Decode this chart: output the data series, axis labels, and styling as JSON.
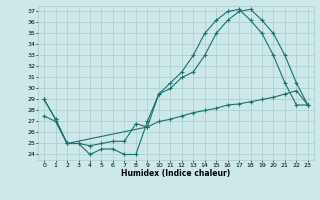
{
  "title": "",
  "xlabel": "Humidex (Indice chaleur)",
  "ylabel": "",
  "bg_color": "#cce8e8",
  "line_color": "#1a7070",
  "grid_color": "#aacccc",
  "xlim": [
    -0.5,
    23.5
  ],
  "ylim": [
    23.5,
    37.5
  ],
  "yticks": [
    24,
    25,
    26,
    27,
    28,
    29,
    30,
    31,
    32,
    33,
    34,
    35,
    36,
    37
  ],
  "xticks": [
    0,
    1,
    2,
    3,
    4,
    5,
    6,
    7,
    8,
    9,
    10,
    11,
    12,
    13,
    14,
    15,
    16,
    17,
    18,
    19,
    20,
    21,
    22,
    23
  ],
  "line1_x": [
    0,
    1,
    2,
    3,
    4,
    5,
    6,
    7,
    8,
    9,
    10,
    11,
    12,
    13,
    14,
    15,
    16,
    17,
    18,
    19,
    20,
    21,
    22,
    23
  ],
  "line1_y": [
    29.0,
    27.2,
    25.0,
    25.0,
    24.0,
    24.5,
    24.5,
    24.0,
    24.0,
    27.0,
    29.5,
    30.0,
    31.0,
    31.5,
    33.0,
    35.0,
    36.2,
    37.0,
    37.2,
    36.2,
    35.0,
    33.0,
    30.5,
    28.5
  ],
  "line2_x": [
    0,
    1,
    2,
    9,
    10,
    11,
    12,
    13,
    14,
    15,
    16,
    17,
    18,
    19,
    20,
    21,
    22,
    23
  ],
  "line2_y": [
    29.0,
    27.2,
    25.0,
    26.5,
    29.5,
    30.5,
    31.5,
    33.0,
    35.0,
    36.2,
    37.0,
    37.2,
    36.2,
    35.0,
    33.0,
    30.5,
    28.5,
    28.5
  ],
  "line3_x": [
    0,
    1,
    2,
    3,
    4,
    5,
    6,
    7,
    8,
    9,
    10,
    11,
    12,
    13,
    14,
    15,
    16,
    17,
    18,
    19,
    20,
    21,
    22,
    23
  ],
  "line3_y": [
    27.5,
    27.0,
    25.0,
    25.0,
    24.8,
    25.0,
    25.2,
    25.2,
    26.8,
    26.5,
    27.0,
    27.2,
    27.5,
    27.8,
    28.0,
    28.2,
    28.5,
    28.6,
    28.8,
    29.0,
    29.2,
    29.5,
    29.8,
    28.5
  ]
}
